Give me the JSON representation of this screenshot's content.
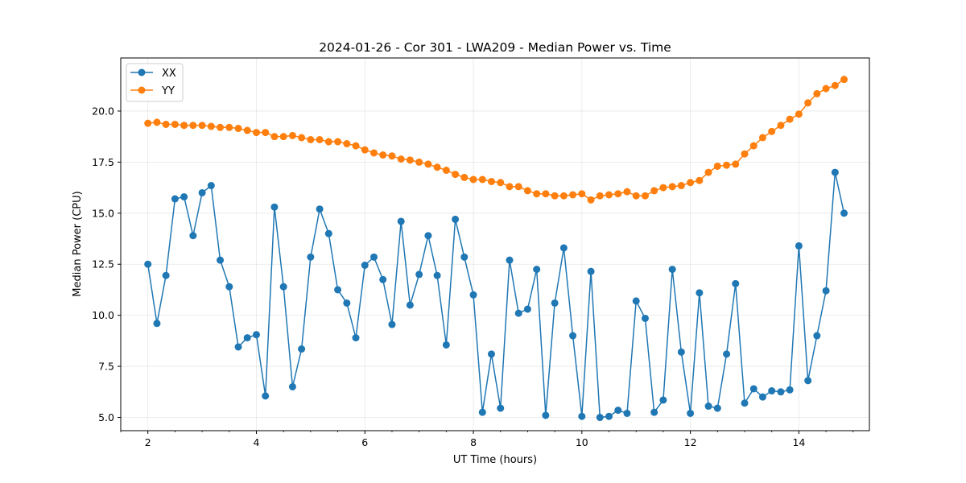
{
  "chart_data": {
    "type": "line",
    "title": "2024-01-26 - Cor 301 - LWA209 - Median Power vs. Time",
    "xlabel": "UT Time (hours)",
    "ylabel": "Median Power (CPU)",
    "xlim": [
      1.5,
      15.3
    ],
    "ylim": [
      4.35,
      22.6
    ],
    "xticks": [
      2,
      4,
      6,
      8,
      10,
      12,
      14
    ],
    "yticks": [
      5.0,
      7.5,
      10.0,
      12.5,
      15.0,
      17.5,
      20.0
    ],
    "xtick_labels": [
      "2",
      "4",
      "6",
      "8",
      "10",
      "12",
      "14"
    ],
    "ytick_labels": [
      "5.0",
      "7.5",
      "10.0",
      "12.5",
      "15.0",
      "17.5",
      "20.0"
    ],
    "grid": true,
    "legend_position": "upper-left",
    "series": [
      {
        "name": "XX",
        "color": "#1f77b4",
        "x": [
          2.0,
          2.167,
          2.333,
          2.5,
          2.667,
          2.833,
          3.0,
          3.167,
          3.333,
          3.5,
          3.667,
          3.833,
          4.0,
          4.167,
          4.333,
          4.5,
          4.667,
          4.833,
          5.0,
          5.167,
          5.333,
          5.5,
          5.667,
          5.833,
          6.0,
          6.167,
          6.333,
          6.5,
          6.667,
          6.833,
          7.0,
          7.167,
          7.333,
          7.5,
          7.667,
          7.833,
          8.0,
          8.167,
          8.333,
          8.5,
          8.667,
          8.833,
          9.0,
          9.167,
          9.333,
          9.5,
          9.667,
          9.833,
          10.0,
          10.167,
          10.333,
          10.5,
          10.667,
          10.833,
          11.0,
          11.167,
          11.333,
          11.5,
          11.667,
          11.833,
          12.0,
          12.167,
          12.333,
          12.5,
          12.667,
          12.833,
          13.0,
          13.167,
          13.333,
          13.5,
          13.667,
          13.833,
          14.0,
          14.167,
          14.333,
          14.5,
          14.667,
          14.833
        ],
        "values": [
          12.5,
          9.6,
          11.95,
          15.7,
          15.8,
          13.9,
          16.0,
          16.35,
          12.7,
          11.4,
          8.45,
          8.9,
          9.05,
          6.05,
          15.3,
          11.4,
          6.5,
          8.35,
          12.85,
          15.2,
          14.0,
          11.25,
          10.6,
          8.9,
          12.45,
          12.85,
          11.75,
          9.55,
          14.6,
          10.5,
          12.0,
          13.9,
          11.95,
          8.55,
          14.7,
          12.85,
          11.0,
          5.25,
          8.1,
          5.45,
          12.7,
          10.1,
          10.3,
          12.25,
          5.1,
          10.6,
          13.3,
          9.0,
          5.05,
          12.15,
          5.0,
          5.05,
          5.35,
          5.2,
          10.7,
          9.85,
          5.25,
          5.85,
          12.25,
          8.2,
          5.2,
          11.1,
          5.55,
          5.45,
          8.1,
          11.55,
          5.7,
          6.4,
          6.0,
          6.3,
          6.25,
          6.35,
          13.4,
          6.8,
          9.0,
          11.2,
          17.0,
          15.0
        ]
      },
      {
        "name": "YY",
        "color": "#ff7f0e",
        "x": [
          2.0,
          2.167,
          2.333,
          2.5,
          2.667,
          2.833,
          3.0,
          3.167,
          3.333,
          3.5,
          3.667,
          3.833,
          4.0,
          4.167,
          4.333,
          4.5,
          4.667,
          4.833,
          5.0,
          5.167,
          5.333,
          5.5,
          5.667,
          5.833,
          6.0,
          6.167,
          6.333,
          6.5,
          6.667,
          6.833,
          7.0,
          7.167,
          7.333,
          7.5,
          7.667,
          7.833,
          8.0,
          8.167,
          8.333,
          8.5,
          8.667,
          8.833,
          9.0,
          9.167,
          9.333,
          9.5,
          9.667,
          9.833,
          10.0,
          10.167,
          10.333,
          10.5,
          10.667,
          10.833,
          11.0,
          11.167,
          11.333,
          11.5,
          11.667,
          11.833,
          12.0,
          12.167,
          12.333,
          12.5,
          12.667,
          12.833,
          13.0,
          13.167,
          13.333,
          13.5,
          13.667,
          13.833,
          14.0,
          14.167,
          14.333,
          14.5,
          14.667,
          14.833
        ],
        "values": [
          19.4,
          19.45,
          19.35,
          19.35,
          19.3,
          19.3,
          19.3,
          19.25,
          19.2,
          19.2,
          19.15,
          19.05,
          18.95,
          18.95,
          18.75,
          18.75,
          18.8,
          18.7,
          18.6,
          18.6,
          18.5,
          18.5,
          18.4,
          18.3,
          18.1,
          17.95,
          17.85,
          17.8,
          17.65,
          17.6,
          17.5,
          17.4,
          17.25,
          17.1,
          16.9,
          16.75,
          16.65,
          16.65,
          16.55,
          16.5,
          16.3,
          16.3,
          16.1,
          15.95,
          15.95,
          15.85,
          15.85,
          15.9,
          15.95,
          15.65,
          15.85,
          15.9,
          15.95,
          16.05,
          15.85,
          15.85,
          16.1,
          16.25,
          16.3,
          16.35,
          16.5,
          16.6,
          17.0,
          17.3,
          17.35,
          17.4,
          17.9,
          18.3,
          18.7,
          19.0,
          19.3,
          19.6,
          19.85,
          20.4,
          20.85,
          21.1,
          21.25,
          21.55
        ]
      }
    ]
  }
}
